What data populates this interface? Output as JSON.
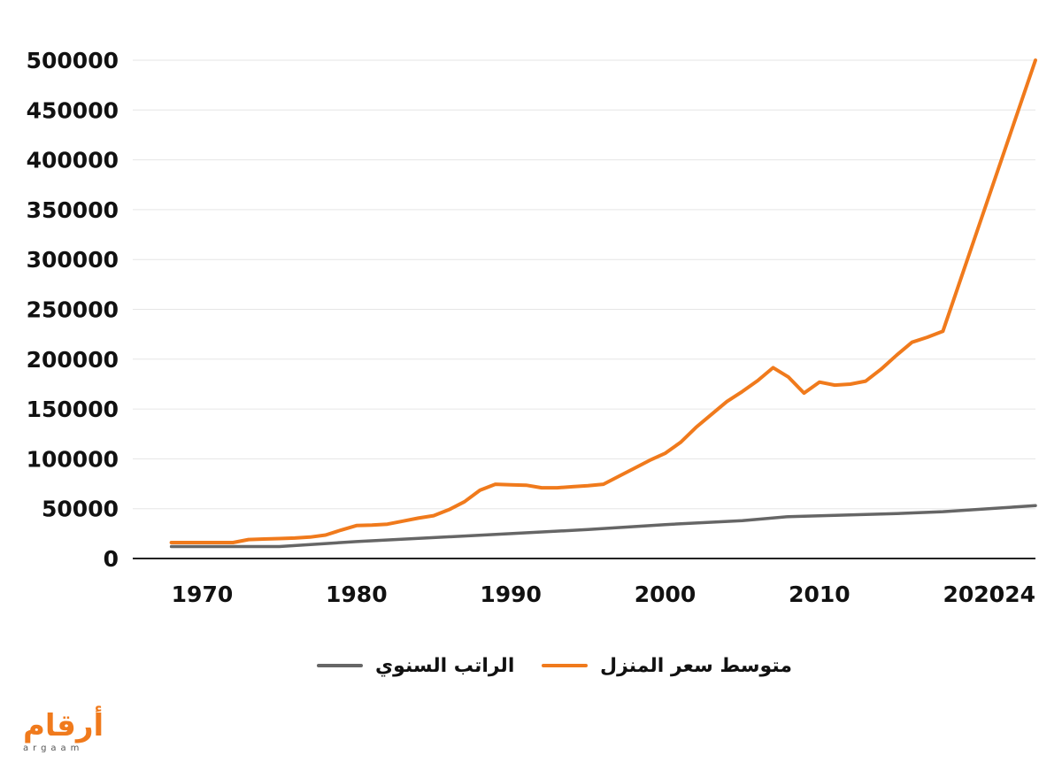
{
  "chart_data": {
    "type": "line",
    "title": "",
    "xlabel": "",
    "ylabel": "",
    "xlim": [
      1965.5,
      2024
    ],
    "ylim": [
      0,
      500000
    ],
    "x_ticks": [
      1970,
      1980,
      1990,
      2000,
      2010,
      2020,
      2024
    ],
    "y_ticks": [
      0,
      50000,
      100000,
      150000,
      200000,
      250000,
      300000,
      350000,
      400000,
      450000,
      500000
    ],
    "grid": true,
    "legend_position": "bottom",
    "series": [
      {
        "name": "متوسط سعر المنزل",
        "color": "#f07a1c",
        "x": [
          1968,
          1969,
          1970,
          1971,
          1972,
          1973,
          1974,
          1975,
          1976,
          1977,
          1978,
          1979,
          1980,
          1981,
          1982,
          1983,
          1984,
          1985,
          1986,
          1987,
          1988,
          1989,
          1990,
          1991,
          1992,
          1993,
          1994,
          1995,
          1996,
          1997,
          1998,
          1999,
          2000,
          2001,
          2002,
          2003,
          2004,
          2005,
          2006,
          2007,
          2008,
          2009,
          2010,
          2011,
          2012,
          2013,
          2014,
          2015,
          2016,
          2017,
          2018,
          2024
        ],
        "y": [
          16000,
          16000,
          16000,
          16000,
          16000,
          19000,
          19500,
          20000,
          20500,
          21500,
          23500,
          28500,
          33000,
          33500,
          34500,
          37500,
          40500,
          43000,
          49000,
          57000,
          68500,
          74500,
          74000,
          73500,
          71000,
          71000,
          72000,
          73000,
          74500,
          82500,
          90500,
          98500,
          105500,
          116500,
          131500,
          144500,
          157500,
          167500,
          178500,
          191500,
          182000,
          166000,
          177000,
          174000,
          175000,
          178000,
          190000,
          204000,
          217000,
          222000,
          228000,
          500000
        ]
      },
      {
        "name": "الراتب السنوي",
        "color": "#666666",
        "x": [
          1968,
          1970,
          1975,
          1980,
          1985,
          1990,
          1995,
          2000,
          2005,
          2008,
          2015,
          2018,
          2024
        ],
        "y": [
          12000,
          12000,
          12000,
          17000,
          21000,
          25000,
          29000,
          34000,
          38000,
          42000,
          45000,
          47000,
          53000
        ]
      }
    ]
  },
  "logo": {
    "arabic": "أرقام",
    "latin": "argaam"
  }
}
